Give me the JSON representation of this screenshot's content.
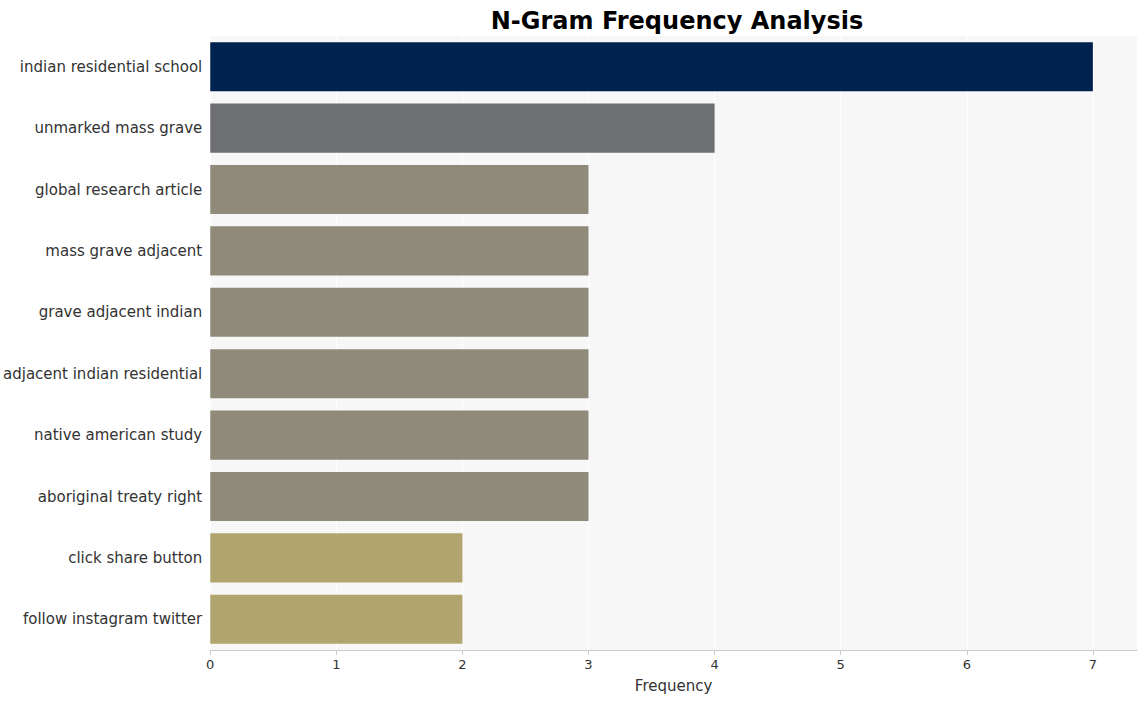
{
  "chart_data": {
    "type": "bar",
    "title": "N-Gram Frequency Analysis",
    "orientation": "horizontal",
    "categories": [
      "indian residential school",
      "unmarked mass grave",
      "global research article",
      "mass grave adjacent",
      "grave adjacent indian",
      "adjacent indian residential",
      "native american study",
      "aboriginal treaty right",
      "click share button",
      "follow instagram twitter"
    ],
    "values": [
      7,
      4,
      3,
      3,
      3,
      3,
      3,
      3,
      2,
      2
    ],
    "colors": [
      "#00224e",
      "#6e6f73",
      "#8f8a79",
      "#8f8a79",
      "#8f8a79",
      "#8f8a79",
      "#8f8a79",
      "#8f8a79",
      "#b0a56e",
      "#b0a56e"
    ],
    "x_label": "Frequency",
    "xlim": [
      0,
      7.35
    ],
    "xticks": [
      0,
      1,
      2,
      3,
      4,
      5,
      6,
      7
    ],
    "grid": true
  }
}
